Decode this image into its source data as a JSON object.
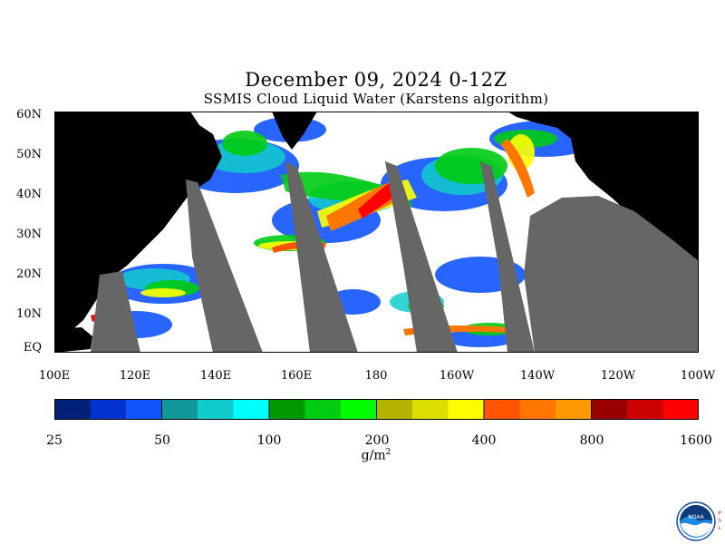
{
  "title": "December 09, 2024 0-12Z",
  "subtitle": "SSMIS Cloud Liquid Water (Karstens algorithm)",
  "map": {
    "lat_labels": [
      "60N",
      "50N",
      "40N",
      "30N",
      "20N",
      "10N",
      "EQ"
    ],
    "lon_labels": [
      "100E",
      "120E",
      "140E",
      "160E",
      "180",
      "160W",
      "140W",
      "120W",
      "100W"
    ],
    "colors": {
      "land": "#000000",
      "no_data_swath_gap": "#666666",
      "ocean_clear": "#ffffff"
    }
  },
  "colorbar": {
    "tick_labels": [
      "25",
      "50",
      "100",
      "200",
      "400",
      "800",
      "1600"
    ],
    "units_base": "g/m",
    "units_sup": "2",
    "colors": [
      "#00207a",
      "#0033cc",
      "#1155ff",
      "#119999",
      "#11cccc",
      "#00ffff",
      "#009900",
      "#00cc11",
      "#00ff00",
      "#b4b400",
      "#dddd00",
      "#ffff00",
      "#ff5500",
      "#ff7700",
      "#ff9900",
      "#990000",
      "#cc0000",
      "#ff0000"
    ]
  },
  "logo": {
    "name": "NOAA",
    "side_text": "PSL"
  }
}
